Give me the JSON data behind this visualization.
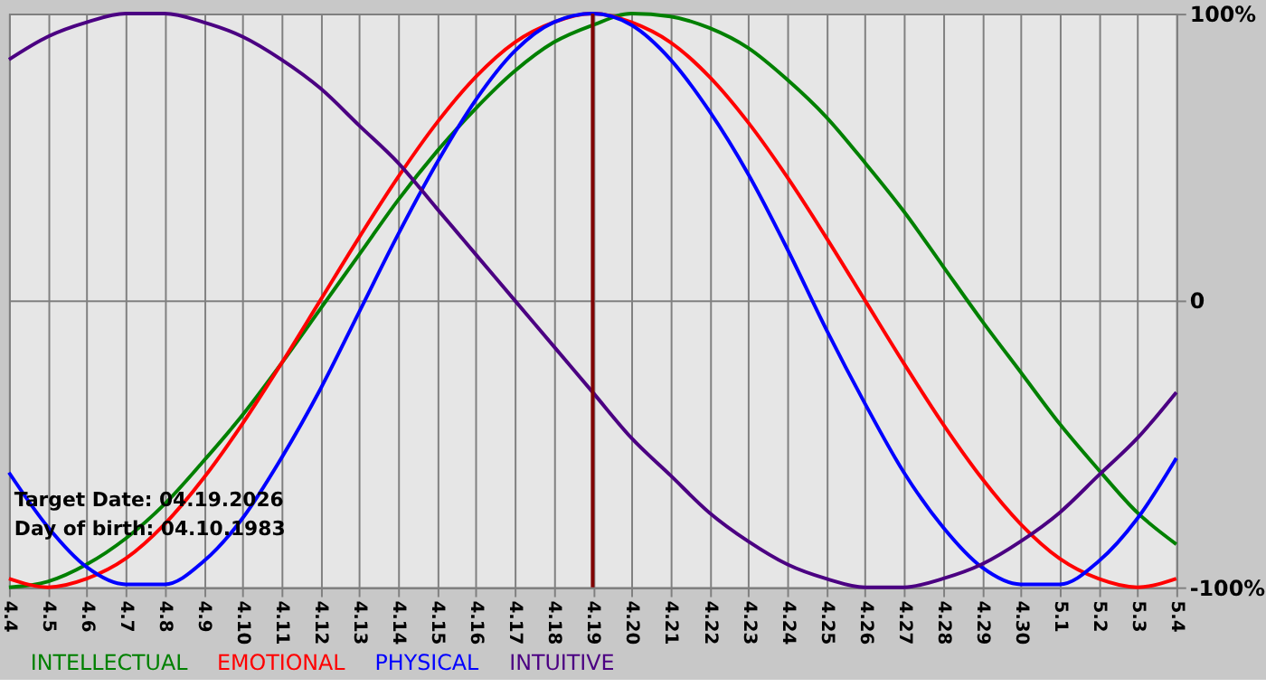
{
  "chart_data": {
    "type": "line",
    "categories": [
      "4.4",
      "4.5",
      "4.6",
      "4.7",
      "4.8",
      "4.9",
      "4.10",
      "4.11",
      "4.12",
      "4.13",
      "4.14",
      "4.15",
      "4.16",
      "4.17",
      "4.18",
      "4.19",
      "4.20",
      "4.21",
      "4.22",
      "4.23",
      "4.24",
      "4.25",
      "4.26",
      "4.27",
      "4.28",
      "4.29",
      "4.30",
      "5.1",
      "5.2",
      "5.3",
      "5.4"
    ],
    "series": [
      {
        "name": "INTELLECTUAL",
        "color": "#008000",
        "values": [
          -100,
          -98,
          -92,
          -83,
          -71,
          -56,
          -40,
          -22,
          -3,
          16,
          35,
          52,
          67,
          80,
          90,
          96,
          100,
          99,
          95,
          88,
          77,
          64,
          48,
          31,
          12,
          -7,
          -25,
          -43,
          -59,
          -74,
          -85
        ]
      },
      {
        "name": "EMOTIONAL",
        "color": "#ff0000",
        "values": [
          -97,
          -100,
          -97,
          -90,
          -78,
          -62,
          -43,
          -22,
          0,
          22,
          43,
          62,
          78,
          90,
          97,
          100,
          97,
          90,
          78,
          62,
          43,
          22,
          0,
          -22,
          -43,
          -62,
          -78,
          -90,
          -97,
          -100,
          -97
        ]
      },
      {
        "name": "PHYSICAL",
        "color": "#0000ff",
        "values": [
          -60,
          -79,
          -93,
          -99,
          -99,
          -91,
          -76,
          -55,
          -31,
          -4,
          23,
          48,
          70,
          87,
          97,
          100,
          96,
          84,
          66,
          44,
          18,
          -10,
          -36,
          -60,
          -79,
          -93,
          -99,
          -99,
          -91,
          -76,
          -55
        ]
      },
      {
        "name": "INTUITIVE",
        "color": "#4b0082",
        "values": [
          84,
          92,
          97,
          100,
          100,
          97,
          92,
          84,
          74,
          61,
          48,
          32,
          16,
          0,
          -16,
          -32,
          -48,
          -61,
          -74,
          -84,
          -92,
          -97,
          -100,
          -100,
          -97,
          -92,
          -84,
          -74,
          -61,
          -48,
          -32
        ]
      }
    ],
    "ylim": [
      -100,
      100
    ],
    "yticks": [
      {
        "value": 100,
        "label": "100%"
      },
      0,
      {
        "value": -100,
        "label": "-100%"
      }
    ],
    "grid": true,
    "legend": "bottom",
    "ref_lines": [
      {
        "axis": "x",
        "value": "4.19",
        "color": "#800000"
      }
    ],
    "annotations": [
      "Target Date: 04.19.2026",
      "Day of birth: 04.10.1983"
    ]
  }
}
